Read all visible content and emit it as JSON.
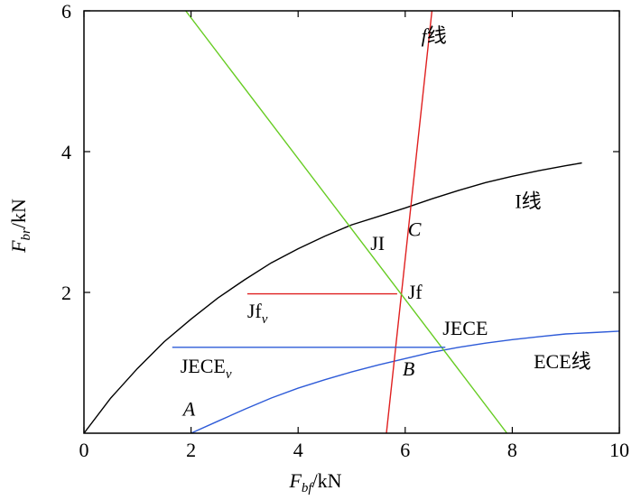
{
  "chart_data": {
    "type": "line",
    "title": "",
    "xlabel": {
      "main": "F",
      "sub": "bf",
      "unit": "/kN"
    },
    "ylabel": {
      "main": "F",
      "sub": "br",
      "unit": "/kN"
    },
    "xlim": [
      0,
      10
    ],
    "ylim": [
      0,
      6
    ],
    "xticks": [
      0,
      2,
      4,
      6,
      8,
      10
    ],
    "yticks": [
      2,
      4,
      6
    ],
    "grid": false,
    "series": [
      {
        "name": "I线",
        "color": "#000000",
        "points": [
          [
            0,
            0
          ],
          [
            0.5,
            0.5
          ],
          [
            1,
            0.92
          ],
          [
            1.5,
            1.3
          ],
          [
            2,
            1.62
          ],
          [
            2.5,
            1.92
          ],
          [
            3,
            2.18
          ],
          [
            3.5,
            2.42
          ],
          [
            4,
            2.62
          ],
          [
            4.5,
            2.8
          ],
          [
            5,
            2.96
          ],
          [
            5.5,
            3.08
          ],
          [
            6,
            3.2
          ],
          [
            6.5,
            3.33
          ],
          [
            7,
            3.45
          ],
          [
            7.5,
            3.56
          ],
          [
            8,
            3.65
          ],
          [
            8.5,
            3.73
          ],
          [
            9,
            3.8
          ],
          [
            9.3,
            3.84
          ]
        ]
      },
      {
        "name": "ECE线",
        "color": "#2e5bd8",
        "points": [
          [
            2,
            0
          ],
          [
            2.5,
            0.17
          ],
          [
            3,
            0.34
          ],
          [
            3.5,
            0.5
          ],
          [
            4,
            0.64
          ],
          [
            4.5,
            0.76
          ],
          [
            5,
            0.87
          ],
          [
            5.5,
            0.97
          ],
          [
            6,
            1.06
          ],
          [
            6.5,
            1.15
          ],
          [
            7,
            1.22
          ],
          [
            7.5,
            1.28
          ],
          [
            8,
            1.33
          ],
          [
            8.5,
            1.37
          ],
          [
            9,
            1.41
          ],
          [
            9.5,
            1.43
          ],
          [
            10,
            1.45
          ]
        ]
      },
      {
        "name": "f线",
        "color": "#e02020",
        "points": [
          [
            5.65,
            0
          ],
          [
            6.5,
            6
          ]
        ]
      },
      {
        "name": "",
        "color": "#66cc22",
        "points": [
          [
            1.9,
            6
          ],
          [
            7.9,
            0
          ]
        ]
      },
      {
        "name": "",
        "color": "#e02020",
        "points": [
          [
            3.05,
            1.98
          ],
          [
            5.85,
            1.98
          ]
        ]
      },
      {
        "name": "",
        "color": "#2e5bd8",
        "points": [
          [
            1.65,
            1.22
          ],
          [
            6.75,
            1.22
          ]
        ]
      }
    ],
    "annotations": [
      {
        "id": "f-line",
        "parts": [
          {
            "t": "f",
            "style": "italic"
          },
          {
            "t": "线"
          }
        ],
        "x": 6.3,
        "y": 5.55
      },
      {
        "id": "i-line",
        "parts": [
          {
            "t": "I线"
          }
        ],
        "x": 8.05,
        "y": 3.2
      },
      {
        "id": "ece-line",
        "parts": [
          {
            "t": "ECE线"
          }
        ],
        "x": 8.4,
        "y": 0.92
      },
      {
        "id": "jece",
        "parts": [
          {
            "t": "JECE"
          }
        ],
        "x": 6.7,
        "y": 1.4
      },
      {
        "id": "jece-v",
        "parts": [
          {
            "t": "JECE"
          },
          {
            "t": "v",
            "style": "italic",
            "sub": true
          }
        ],
        "x": 1.8,
        "y": 0.86
      },
      {
        "id": "jf",
        "parts": [
          {
            "t": "Jf"
          }
        ],
        "x": 6.05,
        "y": 1.91
      },
      {
        "id": "jf-v",
        "parts": [
          {
            "t": "Jf"
          },
          {
            "t": "v",
            "style": "italic",
            "sub": true
          }
        ],
        "x": 3.05,
        "y": 1.64
      },
      {
        "id": "ji",
        "parts": [
          {
            "t": "JI"
          }
        ],
        "x": 5.35,
        "y": 2.6
      },
      {
        "id": "point-a",
        "parts": [
          {
            "t": "A",
            "style": "italic"
          }
        ],
        "x": 1.85,
        "y": 0.25
      },
      {
        "id": "point-b",
        "parts": [
          {
            "t": "B",
            "style": "italic"
          }
        ],
        "x": 5.95,
        "y": 0.82
      },
      {
        "id": "point-c",
        "parts": [
          {
            "t": "C",
            "style": "italic"
          }
        ],
        "x": 6.05,
        "y": 2.8
      }
    ]
  }
}
